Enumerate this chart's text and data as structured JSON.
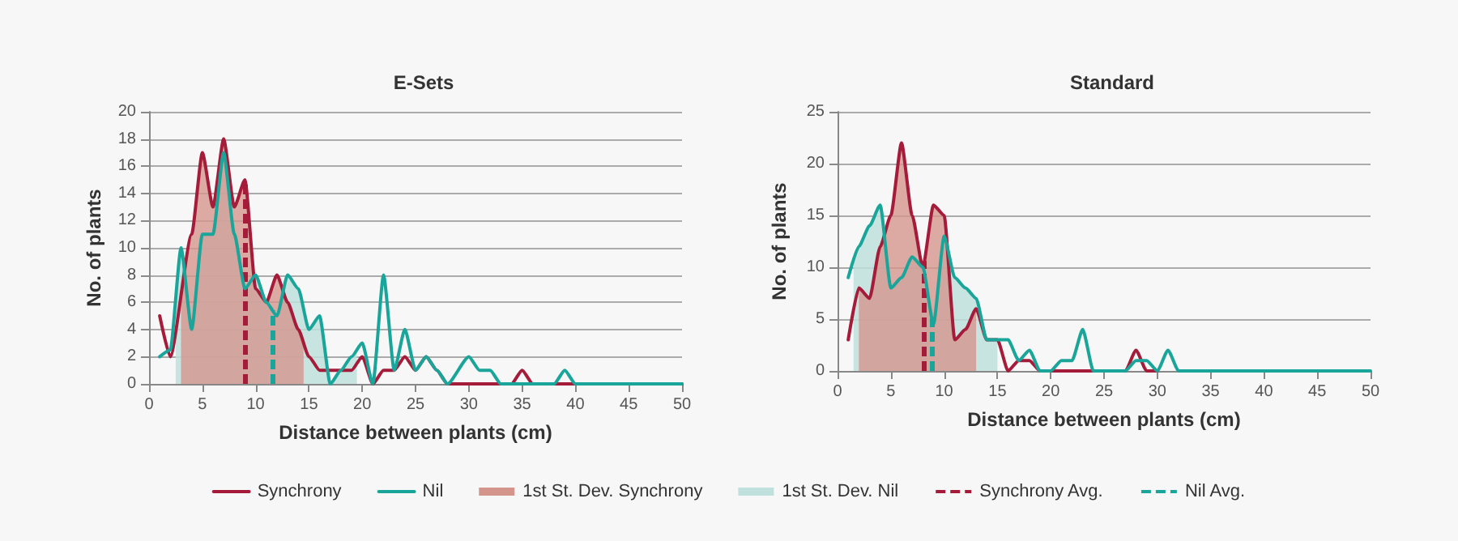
{
  "chart_data": [
    {
      "type": "line",
      "title": "E-Sets",
      "xlabel": "Distance between plants (cm)",
      "ylabel": "No. of plants",
      "xlim": [
        0,
        50
      ],
      "xticks": [
        0,
        5,
        10,
        15,
        20,
        25,
        30,
        35,
        40,
        45,
        50
      ],
      "ylim": [
        0,
        20
      ],
      "yticks": [
        0,
        2,
        4,
        6,
        8,
        10,
        12,
        14,
        16,
        18,
        20
      ],
      "grid": "y",
      "legend": "bottom",
      "marker": "none",
      "series": [
        {
          "name": "Synchrony",
          "color": "#a51c3a",
          "x": [
            1,
            2,
            4,
            5,
            6,
            7,
            8,
            9,
            10,
            11,
            12,
            13,
            14,
            15,
            16,
            17,
            18,
            19,
            20,
            21,
            22,
            23,
            24,
            25,
            26,
            27,
            28,
            30,
            34,
            35,
            36,
            40,
            45,
            50
          ],
          "values": [
            5,
            2,
            11,
            17,
            13,
            18,
            13,
            15,
            7,
            6,
            8,
            6,
            4,
            2,
            1,
            1,
            1,
            1,
            2,
            0,
            1,
            1,
            2,
            1,
            2,
            1,
            0,
            0,
            0,
            1,
            0,
            0,
            0,
            0
          ]
        },
        {
          "name": "Nil",
          "color": "#1aa59a",
          "x": [
            1,
            2,
            3,
            4,
            5,
            6,
            7,
            8,
            9,
            10,
            11,
            12,
            13,
            14,
            15,
            16,
            17,
            18,
            19,
            20,
            21,
            22,
            23,
            24,
            25,
            26,
            27,
            28,
            30,
            31,
            32,
            33,
            35,
            37,
            38,
            39,
            40,
            45,
            50
          ],
          "values": [
            2,
            2.5,
            10,
            4,
            11,
            11,
            17,
            11,
            7,
            8,
            6,
            5,
            8,
            7,
            4,
            5,
            0,
            1,
            2,
            3,
            0,
            8,
            1,
            4,
            1,
            2,
            1,
            0,
            2,
            1,
            1,
            0,
            0,
            0,
            0,
            1,
            0,
            0,
            0
          ]
        },
        {
          "name": "1st St. Dev. Synchrony",
          "type": "area",
          "color": "#d4958d",
          "x": [
            3,
            4,
            5,
            6,
            7,
            8,
            9,
            10,
            11,
            12,
            13,
            14,
            14.5
          ],
          "values": [
            6,
            11,
            17,
            13,
            18,
            13,
            15,
            7,
            6,
            8,
            6,
            4,
            3
          ]
        },
        {
          "name": "1st St. Dev. Nil",
          "type": "area",
          "color": "#bfe0dd",
          "x": [
            2.5,
            3,
            4,
            5,
            6,
            7,
            8,
            9,
            10,
            11,
            12,
            13,
            14,
            15,
            16,
            17,
            18,
            19,
            19.5
          ],
          "values": [
            6,
            10,
            4,
            11,
            11,
            17,
            11,
            7,
            8,
            6,
            5,
            8,
            7,
            4,
            5,
            0,
            1,
            2,
            2.5
          ]
        }
      ],
      "ref_lines": [
        {
          "axis": "x",
          "value": 9,
          "label": "Synchrony Avg.",
          "color": "#a51c3a",
          "line_style": "dashed"
        },
        {
          "axis": "x",
          "value": 11.6,
          "label": "Nil Avg.",
          "color": "#1aa59a",
          "line_style": "dashed"
        }
      ]
    },
    {
      "type": "line",
      "title": "Standard",
      "xlabel": "Distance between plants (cm)",
      "ylabel": "No. of plants",
      "xlim": [
        0,
        50
      ],
      "xticks": [
        0,
        5,
        10,
        15,
        20,
        25,
        30,
        35,
        40,
        45,
        50
      ],
      "ylim": [
        0,
        25
      ],
      "yticks": [
        0,
        5,
        10,
        15,
        20,
        25
      ],
      "grid": "y",
      "marker": "none",
      "series": [
        {
          "color": "#a51c3a",
          "x": [
            1,
            2,
            3,
            4,
            5,
            6,
            7,
            8,
            9,
            10,
            11,
            12,
            13,
            14,
            15,
            16,
            17,
            18,
            19,
            20,
            25,
            27,
            28,
            29,
            30
          ],
          "values": [
            3,
            8,
            7,
            12,
            15,
            22,
            15,
            10,
            16,
            15,
            3,
            4,
            6,
            3,
            3,
            0,
            1,
            1,
            0,
            0,
            0,
            0,
            2,
            0,
            0
          ]
        },
        {
          "color": "#1aa59a",
          "x": [
            1,
            2,
            3,
            4,
            5,
            6,
            7,
            8,
            9,
            10,
            11,
            12,
            13,
            14,
            15,
            16,
            17,
            18,
            19,
            20,
            21,
            22,
            23,
            24,
            25,
            27,
            28,
            29,
            30,
            31,
            32,
            35,
            40,
            45,
            50
          ],
          "values": [
            9,
            12,
            14,
            16,
            8,
            9,
            11,
            10,
            4.5,
            13,
            9,
            8,
            7,
            3,
            3,
            3,
            1,
            2,
            0,
            0,
            1,
            1,
            4,
            0,
            0,
            0,
            1,
            1,
            0,
            2,
            0,
            0,
            0,
            0,
            0
          ]
        },
        {
          "type": "area",
          "color": "#d4958d",
          "x": [
            2,
            3,
            4,
            5,
            6,
            7,
            8,
            9,
            10,
            11,
            12,
            13
          ],
          "values": [
            8,
            7,
            12,
            15,
            22,
            15,
            10,
            16,
            15,
            3,
            4,
            6
          ]
        },
        {
          "type": "area",
          "color": "#bfe0dd",
          "x": [
            1.5,
            2,
            3,
            4,
            5,
            6,
            7,
            8,
            9,
            10,
            11,
            12,
            13,
            14,
            15
          ],
          "values": [
            10.5,
            12,
            14,
            16,
            8,
            9,
            11,
            10,
            4.5,
            13,
            9,
            8,
            7,
            3,
            3
          ]
        }
      ],
      "ref_lines": [
        {
          "axis": "x",
          "value": 8.1,
          "color": "#a51c3a",
          "line_style": "dashed"
        },
        {
          "axis": "x",
          "value": 8.9,
          "color": "#1aa59a",
          "line_style": "dashed"
        }
      ]
    }
  ]
}
